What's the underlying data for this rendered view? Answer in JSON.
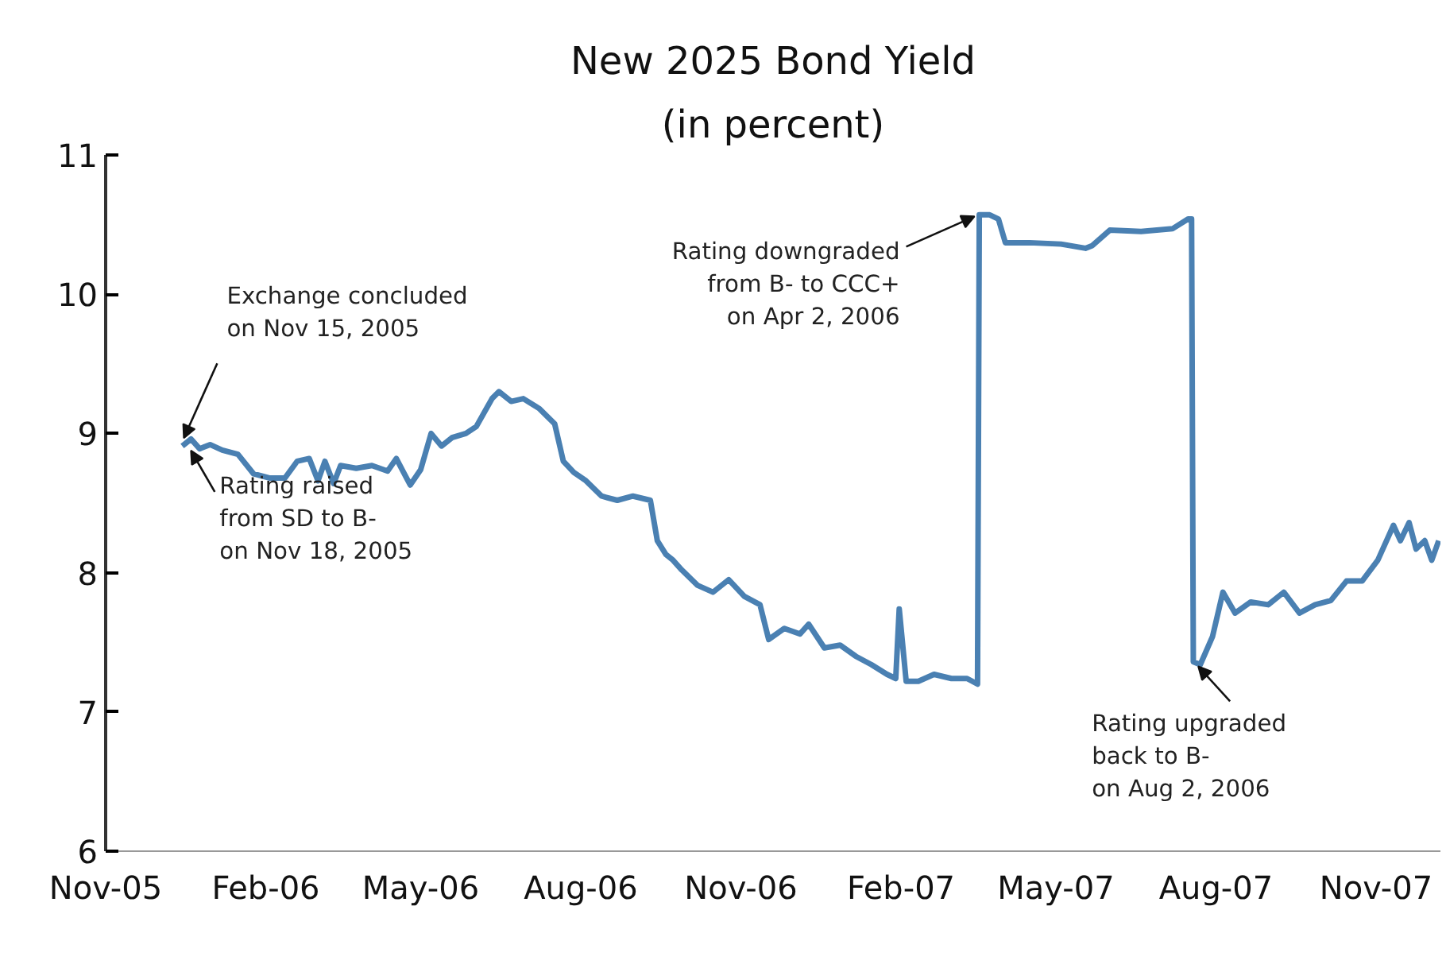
{
  "chart_data": {
    "type": "line",
    "title": "New 2025 Bond Yield",
    "subtitle": "(in percent)",
    "x": [
      "2005-12-15",
      "2005-12-20",
      "2005-12-25",
      "2005-12-31",
      "2006-01-07",
      "2006-01-16",
      "2006-01-25",
      "2006-02-03",
      "2006-02-12",
      "2006-02-19",
      "2006-02-26",
      "2006-03-03",
      "2006-03-07",
      "2006-03-12",
      "2006-03-16",
      "2006-03-25",
      "2006-04-03",
      "2006-04-12",
      "2006-04-17",
      "2006-04-25",
      "2006-05-01",
      "2006-05-07",
      "2006-05-13",
      "2006-05-19",
      "2006-05-27",
      "2006-06-02",
      "2006-06-11",
      "2006-06-15",
      "2006-06-22",
      "2006-06-29",
      "2006-07-08",
      "2006-07-17",
      "2006-07-22",
      "2006-07-28",
      "2006-08-04",
      "2006-08-13",
      "2006-08-22",
      "2006-08-31",
      "2006-09-10",
      "2006-09-14",
      "2006-09-19",
      "2006-09-23",
      "2006-09-28",
      "2006-10-07",
      "2006-10-16",
      "2006-10-25",
      "2006-11-03",
      "2006-11-12",
      "2006-11-17",
      "2006-11-26",
      "2006-12-05",
      "2006-12-10",
      "2006-12-19",
      "2006-12-28",
      "2007-01-06",
      "2007-01-15",
      "2007-01-24",
      "2007-01-29",
      "2007-01-31",
      "2007-02-04",
      "2007-02-11",
      "2007-02-20",
      "2007-03-02",
      "2007-03-11",
      "2007-03-17",
      "2007-03-18",
      "2007-03-24",
      "2007-03-29",
      "2007-04-02",
      "2007-04-16",
      "2007-05-04",
      "2007-05-18",
      "2007-05-22",
      "2007-06-01",
      "2007-06-19",
      "2007-07-07",
      "2007-07-16",
      "2007-07-18",
      "2007-07-19",
      "2007-07-23",
      "2007-07-30",
      "2007-08-05",
      "2007-08-12",
      "2007-08-21",
      "2007-08-31",
      "2007-09-09",
      "2007-09-18",
      "2007-09-27",
      "2007-10-06",
      "2007-10-15",
      "2007-10-24",
      "2007-11-02",
      "2007-11-11",
      "2007-11-15",
      "2007-11-20",
      "2007-11-24",
      "2007-11-29",
      "2007-12-03",
      "2007-12-07"
    ],
    "series": [
      {
        "color": "#4a80b2",
        "values": [
          8.91,
          8.96,
          8.89,
          8.92,
          8.88,
          8.85,
          8.71,
          8.68,
          8.68,
          8.8,
          8.82,
          8.66,
          8.8,
          8.64,
          8.77,
          8.75,
          8.77,
          8.73,
          8.82,
          8.63,
          8.74,
          9.0,
          8.91,
          8.97,
          9.0,
          9.05,
          9.25,
          9.3,
          9.23,
          9.25,
          9.18,
          9.07,
          8.8,
          8.72,
          8.66,
          8.55,
          8.52,
          8.55,
          8.52,
          8.23,
          8.13,
          8.09,
          8.02,
          7.91,
          7.86,
          7.95,
          7.83,
          7.77,
          7.52,
          7.6,
          7.56,
          7.63,
          7.46,
          7.48,
          7.4,
          7.34,
          7.27,
          7.24,
          7.74,
          7.22,
          7.22,
          7.27,
          7.24,
          7.24,
          7.2,
          10.57,
          10.57,
          10.54,
          10.37,
          10.37,
          10.36,
          10.33,
          10.35,
          10.46,
          10.45,
          10.47,
          10.54,
          10.54,
          7.36,
          7.34,
          7.54,
          7.86,
          7.71,
          7.79,
          7.77,
          7.86,
          7.71,
          7.77,
          7.8,
          7.94,
          7.94,
          8.09,
          8.34,
          8.23,
          8.36,
          8.17,
          8.23,
          8.09,
          8.23
        ]
      }
    ],
    "xlim": [
      "2005-11-01",
      "2007-12-08"
    ],
    "xticks": [
      {
        "value": "2005-11-01",
        "label": "Nov-05"
      },
      {
        "value": "2006-02-01",
        "label": "Feb-06"
      },
      {
        "value": "2006-05-01",
        "label": "May-06"
      },
      {
        "value": "2006-08-01",
        "label": "Aug-06"
      },
      {
        "value": "2006-11-01",
        "label": "Nov-06"
      },
      {
        "value": "2007-02-01",
        "label": "Feb-07"
      },
      {
        "value": "2007-05-01",
        "label": "May-07"
      },
      {
        "value": "2007-08-01",
        "label": "Aug-07"
      },
      {
        "value": "2007-11-01",
        "label": "Nov-07"
      }
    ],
    "ylim": [
      6,
      11
    ],
    "yticks": [
      6,
      7,
      8,
      9,
      10,
      11
    ],
    "grid": false,
    "marker": "none",
    "line_style": "solid",
    "annotations": [
      {
        "text": "Exchange concluded\non Nov 15, 2005",
        "x": "2005-12-15",
        "y": 8.91
      },
      {
        "text": "Rating raised\nfrom SD to B-\non Nov 18, 2005",
        "x": "2005-12-20",
        "y": 8.9
      },
      {
        "text": "Rating downgraded\nfrom B- to CCC+\non Apr 2, 2006",
        "x": "2007-03-18",
        "y": 10.57
      },
      {
        "text": "Rating upgraded\nback to B-\non Aug 2, 2006",
        "x": "2007-07-20",
        "y": 7.35
      }
    ]
  }
}
